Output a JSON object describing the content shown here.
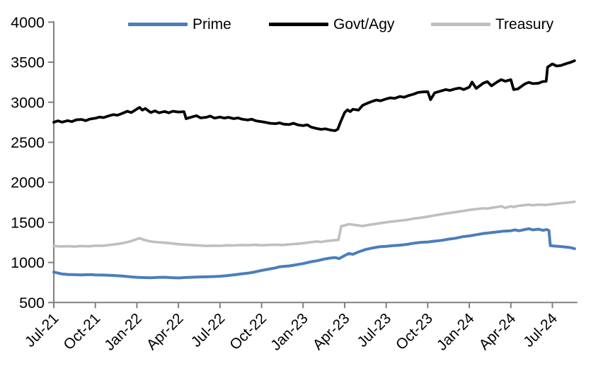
{
  "chart_data": {
    "type": "line",
    "title": "",
    "legend": {
      "position": "top"
    },
    "x_axis": {
      "tick_labels": [
        "Jul-21",
        "Oct-21",
        "Jan-22",
        "Apr-22",
        "Jul-22",
        "Oct-22",
        "Jan-23",
        "Apr-23",
        "Jul-23",
        "Oct-23",
        "Jan-24",
        "Apr-24",
        "Jul-24"
      ],
      "tick_positions_months": [
        0,
        3,
        6,
        9,
        12,
        15,
        18,
        21,
        24,
        27,
        30,
        33,
        36
      ],
      "range_months": [
        0,
        37.8
      ],
      "label_rotation_deg": -45
    },
    "y_axis": {
      "ticks": [
        500,
        1000,
        1500,
        2000,
        2500,
        3000,
        3500,
        4000
      ],
      "range": [
        500,
        4000
      ],
      "gridlines": false
    },
    "series": [
      {
        "name": "Prime",
        "color": "#4a7ebb",
        "points": [
          [
            0,
            880
          ],
          [
            0.3,
            868
          ],
          [
            0.6,
            856
          ],
          [
            1,
            850
          ],
          [
            1.5,
            847
          ],
          [
            2,
            845
          ],
          [
            2.5,
            849
          ],
          [
            3,
            845
          ],
          [
            3.5,
            843
          ],
          [
            4,
            840
          ],
          [
            4.5,
            836
          ],
          [
            5,
            830
          ],
          [
            5.5,
            821
          ],
          [
            6,
            815
          ],
          [
            6.5,
            811
          ],
          [
            7,
            809
          ],
          [
            7.5,
            813
          ],
          [
            8,
            816
          ],
          [
            8.5,
            810
          ],
          [
            9,
            807
          ],
          [
            9.5,
            812
          ],
          [
            10,
            816
          ],
          [
            10.5,
            819
          ],
          [
            11,
            821
          ],
          [
            11.5,
            824
          ],
          [
            12,
            828
          ],
          [
            12.5,
            836
          ],
          [
            13,
            846
          ],
          [
            13.5,
            856
          ],
          [
            14,
            866
          ],
          [
            14.5,
            881
          ],
          [
            15,
            900
          ],
          [
            15.5,
            916
          ],
          [
            16,
            932
          ],
          [
            16.3,
            946
          ],
          [
            16.6,
            951
          ],
          [
            17,
            957
          ],
          [
            17.5,
            971
          ],
          [
            18,
            986
          ],
          [
            18.5,
            1006
          ],
          [
            19,
            1021
          ],
          [
            19.5,
            1041
          ],
          [
            20,
            1056
          ],
          [
            20.3,
            1062
          ],
          [
            20.6,
            1048
          ],
          [
            21,
            1086
          ],
          [
            21.3,
            1112
          ],
          [
            21.6,
            1102
          ],
          [
            22,
            1131
          ],
          [
            22.5,
            1161
          ],
          [
            23,
            1181
          ],
          [
            23.5,
            1196
          ],
          [
            24,
            1202
          ],
          [
            24.5,
            1211
          ],
          [
            25,
            1216
          ],
          [
            25.5,
            1226
          ],
          [
            26,
            1241
          ],
          [
            26.5,
            1251
          ],
          [
            27,
            1256
          ],
          [
            27.5,
            1266
          ],
          [
            28,
            1276
          ],
          [
            28.5,
            1291
          ],
          [
            29,
            1302
          ],
          [
            29.5,
            1321
          ],
          [
            30,
            1331
          ],
          [
            30.5,
            1346
          ],
          [
            31,
            1361
          ],
          [
            31.5,
            1371
          ],
          [
            32,
            1381
          ],
          [
            32.5,
            1391
          ],
          [
            33,
            1396
          ],
          [
            33.3,
            1406
          ],
          [
            33.6,
            1396
          ],
          [
            34,
            1411
          ],
          [
            34.3,
            1421
          ],
          [
            34.6,
            1406
          ],
          [
            35,
            1416
          ],
          [
            35.3,
            1401
          ],
          [
            35.6,
            1411
          ],
          [
            35.75,
            1398
          ],
          [
            35.85,
            1210
          ],
          [
            36,
            1207
          ],
          [
            36.5,
            1200
          ],
          [
            37,
            1191
          ],
          [
            37.3,
            1186
          ],
          [
            37.6,
            1172
          ]
        ]
      },
      {
        "name": "Govt/Agy",
        "color": "#000000",
        "points": [
          [
            0,
            2750
          ],
          [
            0.3,
            2768
          ],
          [
            0.6,
            2752
          ],
          [
            1,
            2770
          ],
          [
            1.3,
            2758
          ],
          [
            1.6,
            2780
          ],
          [
            2,
            2785
          ],
          [
            2.3,
            2770
          ],
          [
            2.6,
            2790
          ],
          [
            3,
            2800
          ],
          [
            3.3,
            2815
          ],
          [
            3.6,
            2808
          ],
          [
            4,
            2832
          ],
          [
            4.3,
            2845
          ],
          [
            4.6,
            2838
          ],
          [
            5,
            2865
          ],
          [
            5.3,
            2888
          ],
          [
            5.6,
            2872
          ],
          [
            6,
            2915
          ],
          [
            6.2,
            2935
          ],
          [
            6.4,
            2902
          ],
          [
            6.6,
            2922
          ],
          [
            7,
            2872
          ],
          [
            7.3,
            2892
          ],
          [
            7.6,
            2868
          ],
          [
            8,
            2885
          ],
          [
            8.3,
            2868
          ],
          [
            8.6,
            2888
          ],
          [
            9,
            2878
          ],
          [
            9.4,
            2882
          ],
          [
            9.55,
            2795
          ],
          [
            10,
            2818
          ],
          [
            10.3,
            2832
          ],
          [
            10.6,
            2805
          ],
          [
            11,
            2812
          ],
          [
            11.3,
            2828
          ],
          [
            11.6,
            2802
          ],
          [
            12,
            2815
          ],
          [
            12.3,
            2802
          ],
          [
            12.6,
            2812
          ],
          [
            13,
            2795
          ],
          [
            13.3,
            2805
          ],
          [
            13.6,
            2788
          ],
          [
            14,
            2778
          ],
          [
            14.3,
            2788
          ],
          [
            14.6,
            2768
          ],
          [
            15,
            2758
          ],
          [
            15.3,
            2748
          ],
          [
            15.6,
            2738
          ],
          [
            16,
            2732
          ],
          [
            16.3,
            2742
          ],
          [
            16.6,
            2726
          ],
          [
            17,
            2722
          ],
          [
            17.3,
            2738
          ],
          [
            17.6,
            2718
          ],
          [
            18,
            2708
          ],
          [
            18.3,
            2718
          ],
          [
            18.6,
            2688
          ],
          [
            19,
            2672
          ],
          [
            19.3,
            2662
          ],
          [
            19.6,
            2668
          ],
          [
            20,
            2652
          ],
          [
            20.3,
            2645
          ],
          [
            20.5,
            2662
          ],
          [
            20.7,
            2752
          ],
          [
            21,
            2872
          ],
          [
            21.2,
            2905
          ],
          [
            21.4,
            2882
          ],
          [
            21.6,
            2912
          ],
          [
            22,
            2902
          ],
          [
            22.3,
            2962
          ],
          [
            22.6,
            2985
          ],
          [
            23,
            3012
          ],
          [
            23.3,
            3028
          ],
          [
            23.6,
            3018
          ],
          [
            24,
            3042
          ],
          [
            24.3,
            3055
          ],
          [
            24.6,
            3048
          ],
          [
            25,
            3072
          ],
          [
            25.3,
            3062
          ],
          [
            25.6,
            3082
          ],
          [
            26,
            3102
          ],
          [
            26.3,
            3122
          ],
          [
            26.6,
            3128
          ],
          [
            27,
            3132
          ],
          [
            27.2,
            3032
          ],
          [
            27.5,
            3118
          ],
          [
            28,
            3142
          ],
          [
            28.3,
            3158
          ],
          [
            28.6,
            3148
          ],
          [
            29,
            3168
          ],
          [
            29.3,
            3178
          ],
          [
            29.6,
            3158
          ],
          [
            30,
            3188
          ],
          [
            30.2,
            3252
          ],
          [
            30.5,
            3172
          ],
          [
            31,
            3238
          ],
          [
            31.3,
            3258
          ],
          [
            31.6,
            3205
          ],
          [
            32,
            3252
          ],
          [
            32.3,
            3282
          ],
          [
            32.6,
            3262
          ],
          [
            33,
            3282
          ],
          [
            33.2,
            3158
          ],
          [
            33.5,
            3165
          ],
          [
            34,
            3228
          ],
          [
            34.3,
            3248
          ],
          [
            34.6,
            3232
          ],
          [
            35,
            3238
          ],
          [
            35.3,
            3258
          ],
          [
            35.55,
            3262
          ],
          [
            35.65,
            3438
          ],
          [
            36,
            3478
          ],
          [
            36.3,
            3452
          ],
          [
            36.6,
            3458
          ],
          [
            37,
            3482
          ],
          [
            37.3,
            3498
          ],
          [
            37.6,
            3518
          ]
        ]
      },
      {
        "name": "Treasury",
        "color": "#bfbfbf",
        "points": [
          [
            0,
            1205
          ],
          [
            0.5,
            1200
          ],
          [
            1,
            1203
          ],
          [
            1.5,
            1198
          ],
          [
            2,
            1205
          ],
          [
            2.5,
            1202
          ],
          [
            3,
            1210
          ],
          [
            3.5,
            1208
          ],
          [
            4,
            1218
          ],
          [
            4.5,
            1228
          ],
          [
            5,
            1242
          ],
          [
            5.5,
            1262
          ],
          [
            6,
            1292
          ],
          [
            6.2,
            1303
          ],
          [
            6.5,
            1282
          ],
          [
            7,
            1262
          ],
          [
            7.5,
            1252
          ],
          [
            8,
            1247
          ],
          [
            8.5,
            1238
          ],
          [
            9,
            1228
          ],
          [
            9.5,
            1222
          ],
          [
            10,
            1218
          ],
          [
            10.5,
            1212
          ],
          [
            11,
            1206
          ],
          [
            11.5,
            1210
          ],
          [
            12,
            1208
          ],
          [
            12.5,
            1214
          ],
          [
            13,
            1212
          ],
          [
            13.5,
            1218
          ],
          [
            14,
            1215
          ],
          [
            14.5,
            1220
          ],
          [
            15,
            1214
          ],
          [
            15.5,
            1219
          ],
          [
            16,
            1222
          ],
          [
            16.5,
            1218
          ],
          [
            17,
            1226
          ],
          [
            17.5,
            1232
          ],
          [
            18,
            1241
          ],
          [
            18.5,
            1252
          ],
          [
            19,
            1262
          ],
          [
            19.3,
            1255
          ],
          [
            19.6,
            1266
          ],
          [
            20,
            1272
          ],
          [
            20.3,
            1278
          ],
          [
            20.55,
            1282
          ],
          [
            20.75,
            1452
          ],
          [
            21,
            1462
          ],
          [
            21.3,
            1478
          ],
          [
            21.6,
            1472
          ],
          [
            22,
            1462
          ],
          [
            22.3,
            1455
          ],
          [
            22.6,
            1465
          ],
          [
            23,
            1475
          ],
          [
            23.5,
            1488
          ],
          [
            24,
            1502
          ],
          [
            24.5,
            1512
          ],
          [
            25,
            1522
          ],
          [
            25.5,
            1532
          ],
          [
            26,
            1548
          ],
          [
            26.5,
            1558
          ],
          [
            27,
            1572
          ],
          [
            27.5,
            1588
          ],
          [
            28,
            1602
          ],
          [
            28.5,
            1616
          ],
          [
            29,
            1628
          ],
          [
            29.5,
            1642
          ],
          [
            30,
            1656
          ],
          [
            30.5,
            1666
          ],
          [
            31,
            1676
          ],
          [
            31.3,
            1672
          ],
          [
            31.6,
            1682
          ],
          [
            32,
            1692
          ],
          [
            32.3,
            1702
          ],
          [
            32.6,
            1682
          ],
          [
            33,
            1702
          ],
          [
            33.2,
            1692
          ],
          [
            33.5,
            1706
          ],
          [
            34,
            1716
          ],
          [
            34.3,
            1722
          ],
          [
            34.6,
            1714
          ],
          [
            35,
            1722
          ],
          [
            35.5,
            1718
          ],
          [
            36,
            1728
          ],
          [
            36.5,
            1738
          ],
          [
            37,
            1746
          ],
          [
            37.3,
            1750
          ],
          [
            37.6,
            1758
          ]
        ]
      }
    ]
  }
}
